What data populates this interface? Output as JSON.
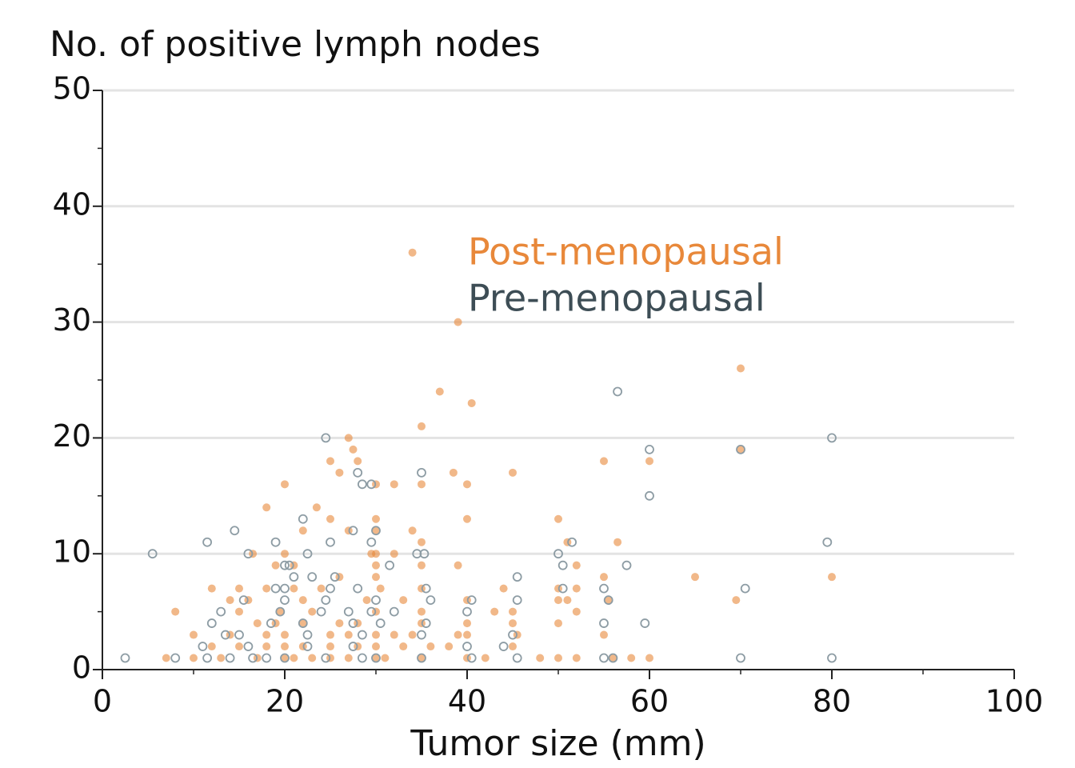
{
  "chart_data": {
    "type": "scatter",
    "title": "No. of positive lymph nodes",
    "x_label": "Tumor size (mm)",
    "xlim": [
      0,
      100
    ],
    "xticks": [
      0,
      20,
      40,
      60,
      80,
      100
    ],
    "x_minor_ticks": [
      10,
      30,
      50,
      70,
      90
    ],
    "ylim": [
      0,
      50
    ],
    "yticks": [
      0,
      10,
      20,
      30,
      40,
      50
    ],
    "y_minor_ticks": [
      5,
      15,
      25,
      35,
      45
    ],
    "grid": true,
    "series": [
      {
        "name": "Post-menopausal",
        "color": "#e8883a",
        "marker": "filled",
        "x": [
          34,
          39,
          70,
          37,
          40.5,
          35,
          27,
          27.5,
          25,
          55,
          60,
          45,
          26,
          38.5,
          20,
          30,
          32,
          35,
          40,
          28,
          70,
          18,
          23.5,
          40,
          25,
          30,
          50,
          22,
          27,
          34,
          30,
          56.5,
          35,
          51,
          16.5,
          20,
          29.5,
          30,
          32,
          35,
          39,
          19,
          21,
          30,
          52,
          65,
          80,
          26,
          30,
          55,
          12,
          15,
          18,
          21,
          24,
          30.5,
          35,
          44,
          52,
          50,
          14,
          16,
          22,
          29,
          33,
          40,
          50,
          51,
          55.5,
          69.5,
          8,
          15,
          19.5,
          23,
          30,
          35,
          43,
          45,
          52,
          17,
          19,
          22,
          26,
          28,
          35,
          40,
          45,
          50,
          10,
          14,
          18,
          20,
          25,
          27,
          30,
          32,
          34,
          39,
          40,
          45.5,
          55,
          12,
          15,
          18,
          20,
          22,
          25,
          28,
          30,
          33,
          36,
          38,
          45,
          7,
          10,
          13,
          17,
          20,
          21,
          23,
          25,
          27,
          30,
          31,
          35,
          40,
          42,
          48,
          50,
          52,
          56,
          58,
          60
        ],
        "values": [
          36,
          30,
          26,
          24,
          23,
          21,
          20,
          19,
          18,
          18,
          18,
          17,
          17,
          17,
          16,
          16,
          16,
          16,
          16,
          18,
          19,
          14,
          14,
          13,
          13,
          13,
          13,
          12,
          12,
          12,
          12,
          11,
          11,
          11,
          10,
          10,
          10,
          10,
          10,
          9,
          9,
          9,
          9,
          9,
          9,
          8,
          8,
          8,
          8,
          8,
          7,
          7,
          7,
          7,
          7,
          7,
          7,
          7,
          7,
          7,
          6,
          6,
          6,
          6,
          6,
          6,
          6,
          6,
          6,
          6,
          5,
          5,
          5,
          5,
          5,
          5,
          5,
          5,
          5,
          4,
          4,
          4,
          4,
          4,
          4,
          4,
          4,
          4,
          3,
          3,
          3,
          3,
          3,
          3,
          3,
          3,
          3,
          3,
          3,
          3,
          3,
          2,
          2,
          2,
          2,
          2,
          2,
          2,
          2,
          2,
          2,
          2,
          2,
          1,
          1,
          1,
          1,
          1,
          1,
          1,
          1,
          1,
          1,
          1,
          1,
          1,
          1,
          1,
          1,
          1,
          1,
          1,
          1
        ]
      },
      {
        "name": "Pre-menopausal",
        "color": "#3d4d55",
        "marker": "open",
        "marker_color": "#8d9ca4",
        "x": [
          5.5,
          2.5,
          24.5,
          56.5,
          80,
          60,
          70,
          35,
          28,
          28.5,
          29.5,
          60,
          14.5,
          22,
          27.5,
          30,
          11.5,
          19,
          25,
          29.5,
          34.5,
          35.3,
          16,
          22.5,
          50,
          51.5,
          79.5,
          20,
          20.5,
          31.5,
          50.5,
          57.5,
          21,
          23,
          25.5,
          45.5,
          19,
          20,
          25,
          28,
          35.5,
          50.5,
          55,
          70.5,
          15.5,
          20,
          24.5,
          30,
          36,
          40.5,
          45.5,
          55.5,
          13,
          19.5,
          24,
          27,
          29.5,
          32,
          40,
          12,
          18.5,
          22,
          27.5,
          30.5,
          35.5,
          55,
          59.5,
          13.5,
          15,
          22.5,
          28.5,
          35,
          45,
          11,
          16,
          22.5,
          27.5,
          40,
          44,
          8,
          11.5,
          14,
          16.5,
          18,
          20,
          24.5,
          28.5,
          30,
          35,
          40.5,
          45.5,
          55,
          56,
          70,
          80
        ],
        "values": [
          10,
          1,
          20,
          24,
          20,
          19,
          19,
          17,
          17,
          16,
          16,
          15,
          12,
          13,
          12,
          12,
          11,
          11,
          11,
          11,
          10,
          10,
          10,
          10,
          10,
          11,
          11,
          9,
          9,
          9,
          9,
          9,
          8,
          8,
          8,
          8,
          7,
          7,
          7,
          7,
          7,
          7,
          7,
          7,
          6,
          6,
          6,
          6,
          6,
          6,
          6,
          6,
          5,
          5,
          5,
          5,
          5,
          5,
          5,
          4,
          4,
          4,
          4,
          4,
          4,
          4,
          4,
          3,
          3,
          3,
          3,
          3,
          3,
          2,
          2,
          2,
          2,
          2,
          2,
          1,
          1,
          1,
          1,
          1,
          1,
          1,
          1,
          1,
          1,
          1,
          1,
          1,
          1,
          1,
          1
        ]
      }
    ]
  }
}
